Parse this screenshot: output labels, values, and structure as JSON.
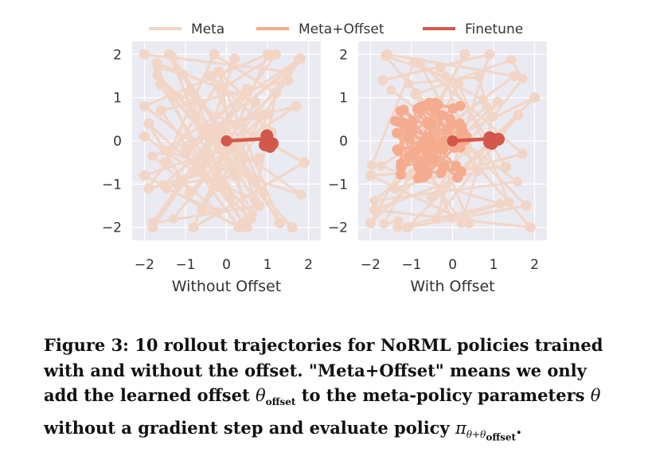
{
  "legend": [
    {
      "label": "Meta",
      "color": "#f2d5c4"
    },
    {
      "label": "Meta+Offset",
      "color": "#f5ab8e"
    },
    {
      "label": "Finetune",
      "color": "#d4584a"
    }
  ],
  "caption": {
    "line1": "Figure 3: 10 rollout trajectories for NoRML policies trained",
    "line2": "with and without the offset. \"Meta+Offset\" means we only",
    "line3_pre": "add the learned offset ",
    "theta": "θ",
    "offset_sub": "offset",
    "line3_post": " to the meta-policy parameters ",
    "theta2": "θ",
    "line4_pre": "without a gradient step and evaluate policy ",
    "pi": "π",
    "pi_sub_pre": "θ+θ",
    "pi_sub_sub": "offset",
    "line4_post": "."
  },
  "chart_data": [
    {
      "type": "line",
      "xlabel": "Without Offset",
      "xlim": [
        -2.3,
        2.3
      ],
      "ylim": [
        -2.3,
        2.3
      ],
      "xticks": [
        -2,
        -1,
        0,
        1,
        2
      ],
      "yticks": [
        -2,
        -1,
        0,
        1,
        2
      ],
      "xtick_labels": [
        "−2",
        "−1",
        "0",
        "1",
        "2"
      ],
      "ytick_labels": [
        "2",
        "1",
        "0",
        "−1",
        "−2"
      ],
      "grid": true,
      "series": [
        {
          "name": "Meta",
          "color": "#f2d5c4",
          "x": [
            -2,
            1.5,
            -1,
            0.5,
            -1.8,
            0.8,
            -0.5,
            1.7,
            -1.2,
            0.2,
            -2,
            1,
            -0.8,
            1.9,
            -1.6,
            0.4
          ],
          "y": [
            2,
            1.6,
            -0.2,
            1.2,
            -1.9,
            -1.5,
            0.3,
            0.8,
            -1,
            -0.8,
            0.8,
            2,
            -2,
            -0.5,
            1.3,
            -1.9
          ]
        },
        {
          "name": "Meta",
          "color": "#f2d5c4",
          "x": [
            -1.5,
            -0.3,
            1.2,
            0.6,
            -1.9,
            -0.9,
            0.9,
            -0.2,
            1.3,
            -1.4,
            0.1,
            -2
          ],
          "y": [
            -0.5,
            2,
            1.1,
            -1.8,
            0.4,
            -1.2,
            0.6,
            1.6,
            -1.9,
            2,
            -1.3,
            0.1
          ]
        },
        {
          "name": "Meta",
          "color": "#f2d5c4",
          "x": [
            -1.7,
            0.7,
            -0.6,
            1.8,
            -1,
            0.3,
            -2,
            1.1,
            -0.4,
            0.9,
            -1.3,
            1.6
          ],
          "y": [
            1.8,
            0.9,
            -1.6,
            1.9,
            -0.3,
            -2,
            -0.8,
            0.2,
            1.5,
            -1.2,
            1,
            -2
          ]
        },
        {
          "name": "Meta",
          "color": "#f2d5c4",
          "x": [
            0.8,
            -1.9,
            0.2,
            -0.7,
            1.5,
            -1.6,
            0.5,
            -0.1,
            1.2,
            -1.8
          ],
          "y": [
            -0.4,
            -1.1,
            1.9,
            -0.6,
            1.4,
            0.7,
            -2,
            1.2,
            2,
            -2
          ]
        }
      ]
    },
    {
      "type": "line",
      "xlabel": "With Offset",
      "xlim": [
        -2.3,
        2.3
      ],
      "ylim": [
        -2.3,
        2.3
      ],
      "xticks": [
        -2,
        -1,
        0,
        1,
        2
      ],
      "yticks": [
        -2,
        -1,
        0,
        1,
        2
      ],
      "xtick_labels": [
        "−2",
        "−1",
        "0",
        "1",
        "2"
      ],
      "ytick_labels": [
        "2",
        "1",
        "0",
        "−1",
        "−2"
      ],
      "grid": true,
      "series": [
        {
          "name": "Meta",
          "color": "#f2d5c4",
          "x": [
            -1.6,
            1.5,
            -0.2,
            1.9,
            -1.9,
            0.6,
            -0.8,
            1.7,
            -1.4,
            0.3,
            -2,
            1.1,
            -0.5,
            2,
            -1.2
          ],
          "y": [
            2,
            1.5,
            0.3,
            -2,
            -1.6,
            -0.7,
            1.8,
            -0.3,
            -1.1,
            2,
            -1.9,
            0.9,
            -1.3,
            1,
            -0.5
          ]
        },
        {
          "name": "Meta",
          "color": "#f2d5c4",
          "x": [
            -1.7,
            0.9,
            -0.4,
            1.6,
            -1.1,
            1.8,
            -0.9,
            0.4,
            -2,
            1.3,
            -0.3
          ],
          "y": [
            1.4,
            2,
            -1.8,
            0.6,
            -2,
            -1.5,
            1.1,
            -1.9,
            -0.8,
            -0.6,
            1.7
          ]
        }
      ]
    }
  ]
}
